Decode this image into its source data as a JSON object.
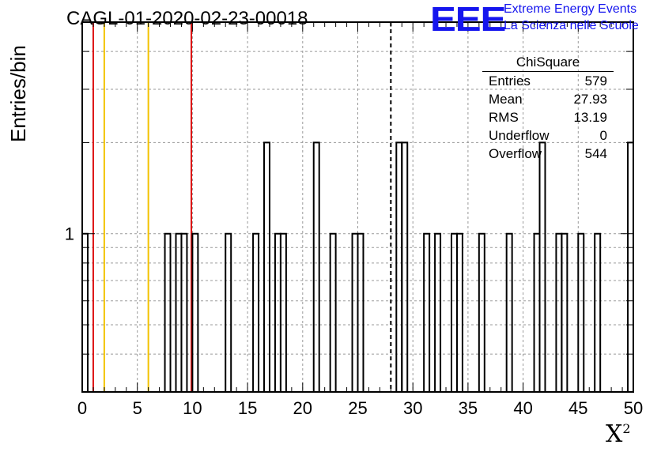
{
  "header": {
    "title": "CAGL-01-2020-02-23-00018"
  },
  "logo": {
    "mark": "EEE",
    "line1": "Extreme Energy Events",
    "line2": "La Scienza nelle Scuole",
    "color": "#1515ee"
  },
  "stats_box": {
    "title": "ChiSquare",
    "rows": [
      {
        "label": "Entries",
        "value": "579"
      },
      {
        "label": "Mean",
        "value": "27.93"
      },
      {
        "label": "RMS",
        "value": "13.19"
      },
      {
        "label": "Underflow",
        "value": "0"
      },
      {
        "label": "Overflow",
        "value": "544"
      }
    ]
  },
  "chart_data": {
    "type": "histogram",
    "ylabel": "Entries/bin",
    "xlabel_base": "X",
    "xlabel_sup": "2",
    "xlim": [
      0,
      50
    ],
    "y_scale": "log",
    "ylim": [
      0.3,
      5
    ],
    "y_tick_labels": [
      {
        "value": 1,
        "label": "1"
      }
    ],
    "x_ticks": [
      0,
      5,
      10,
      15,
      20,
      25,
      30,
      35,
      40,
      45,
      50
    ],
    "bin_width": 0.5,
    "grid": true,
    "bins": [
      {
        "x": 0.0,
        "count": 1
      },
      {
        "x": 7.5,
        "count": 1
      },
      {
        "x": 8.5,
        "count": 1
      },
      {
        "x": 9.0,
        "count": 1
      },
      {
        "x": 10.0,
        "count": 1
      },
      {
        "x": 13.0,
        "count": 1
      },
      {
        "x": 15.5,
        "count": 1
      },
      {
        "x": 16.5,
        "count": 2
      },
      {
        "x": 17.5,
        "count": 1
      },
      {
        "x": 18.0,
        "count": 1
      },
      {
        "x": 21.0,
        "count": 2
      },
      {
        "x": 22.5,
        "count": 1
      },
      {
        "x": 24.5,
        "count": 1
      },
      {
        "x": 25.0,
        "count": 1
      },
      {
        "x": 28.5,
        "count": 2
      },
      {
        "x": 29.0,
        "count": 2
      },
      {
        "x": 31.0,
        "count": 1
      },
      {
        "x": 32.0,
        "count": 1
      },
      {
        "x": 33.5,
        "count": 1
      },
      {
        "x": 34.0,
        "count": 1
      },
      {
        "x": 36.0,
        "count": 1
      },
      {
        "x": 38.5,
        "count": 1
      },
      {
        "x": 41.0,
        "count": 1
      },
      {
        "x": 41.5,
        "count": 2
      },
      {
        "x": 43.0,
        "count": 1
      },
      {
        "x": 43.5,
        "count": 1
      },
      {
        "x": 45.0,
        "count": 1
      },
      {
        "x": 46.5,
        "count": 1
      },
      {
        "x": 49.5,
        "count": 2
      }
    ],
    "vertical_lines": [
      {
        "x": 1.0,
        "color": "#dd1111",
        "style": "solid"
      },
      {
        "x": 2.0,
        "color": "#f2c200",
        "style": "solid"
      },
      {
        "x": 6.0,
        "color": "#f2c200",
        "style": "solid"
      },
      {
        "x": 9.9,
        "color": "#dd1111",
        "style": "solid"
      },
      {
        "x": 28.0,
        "color": "#000000",
        "style": "dashed"
      }
    ]
  }
}
